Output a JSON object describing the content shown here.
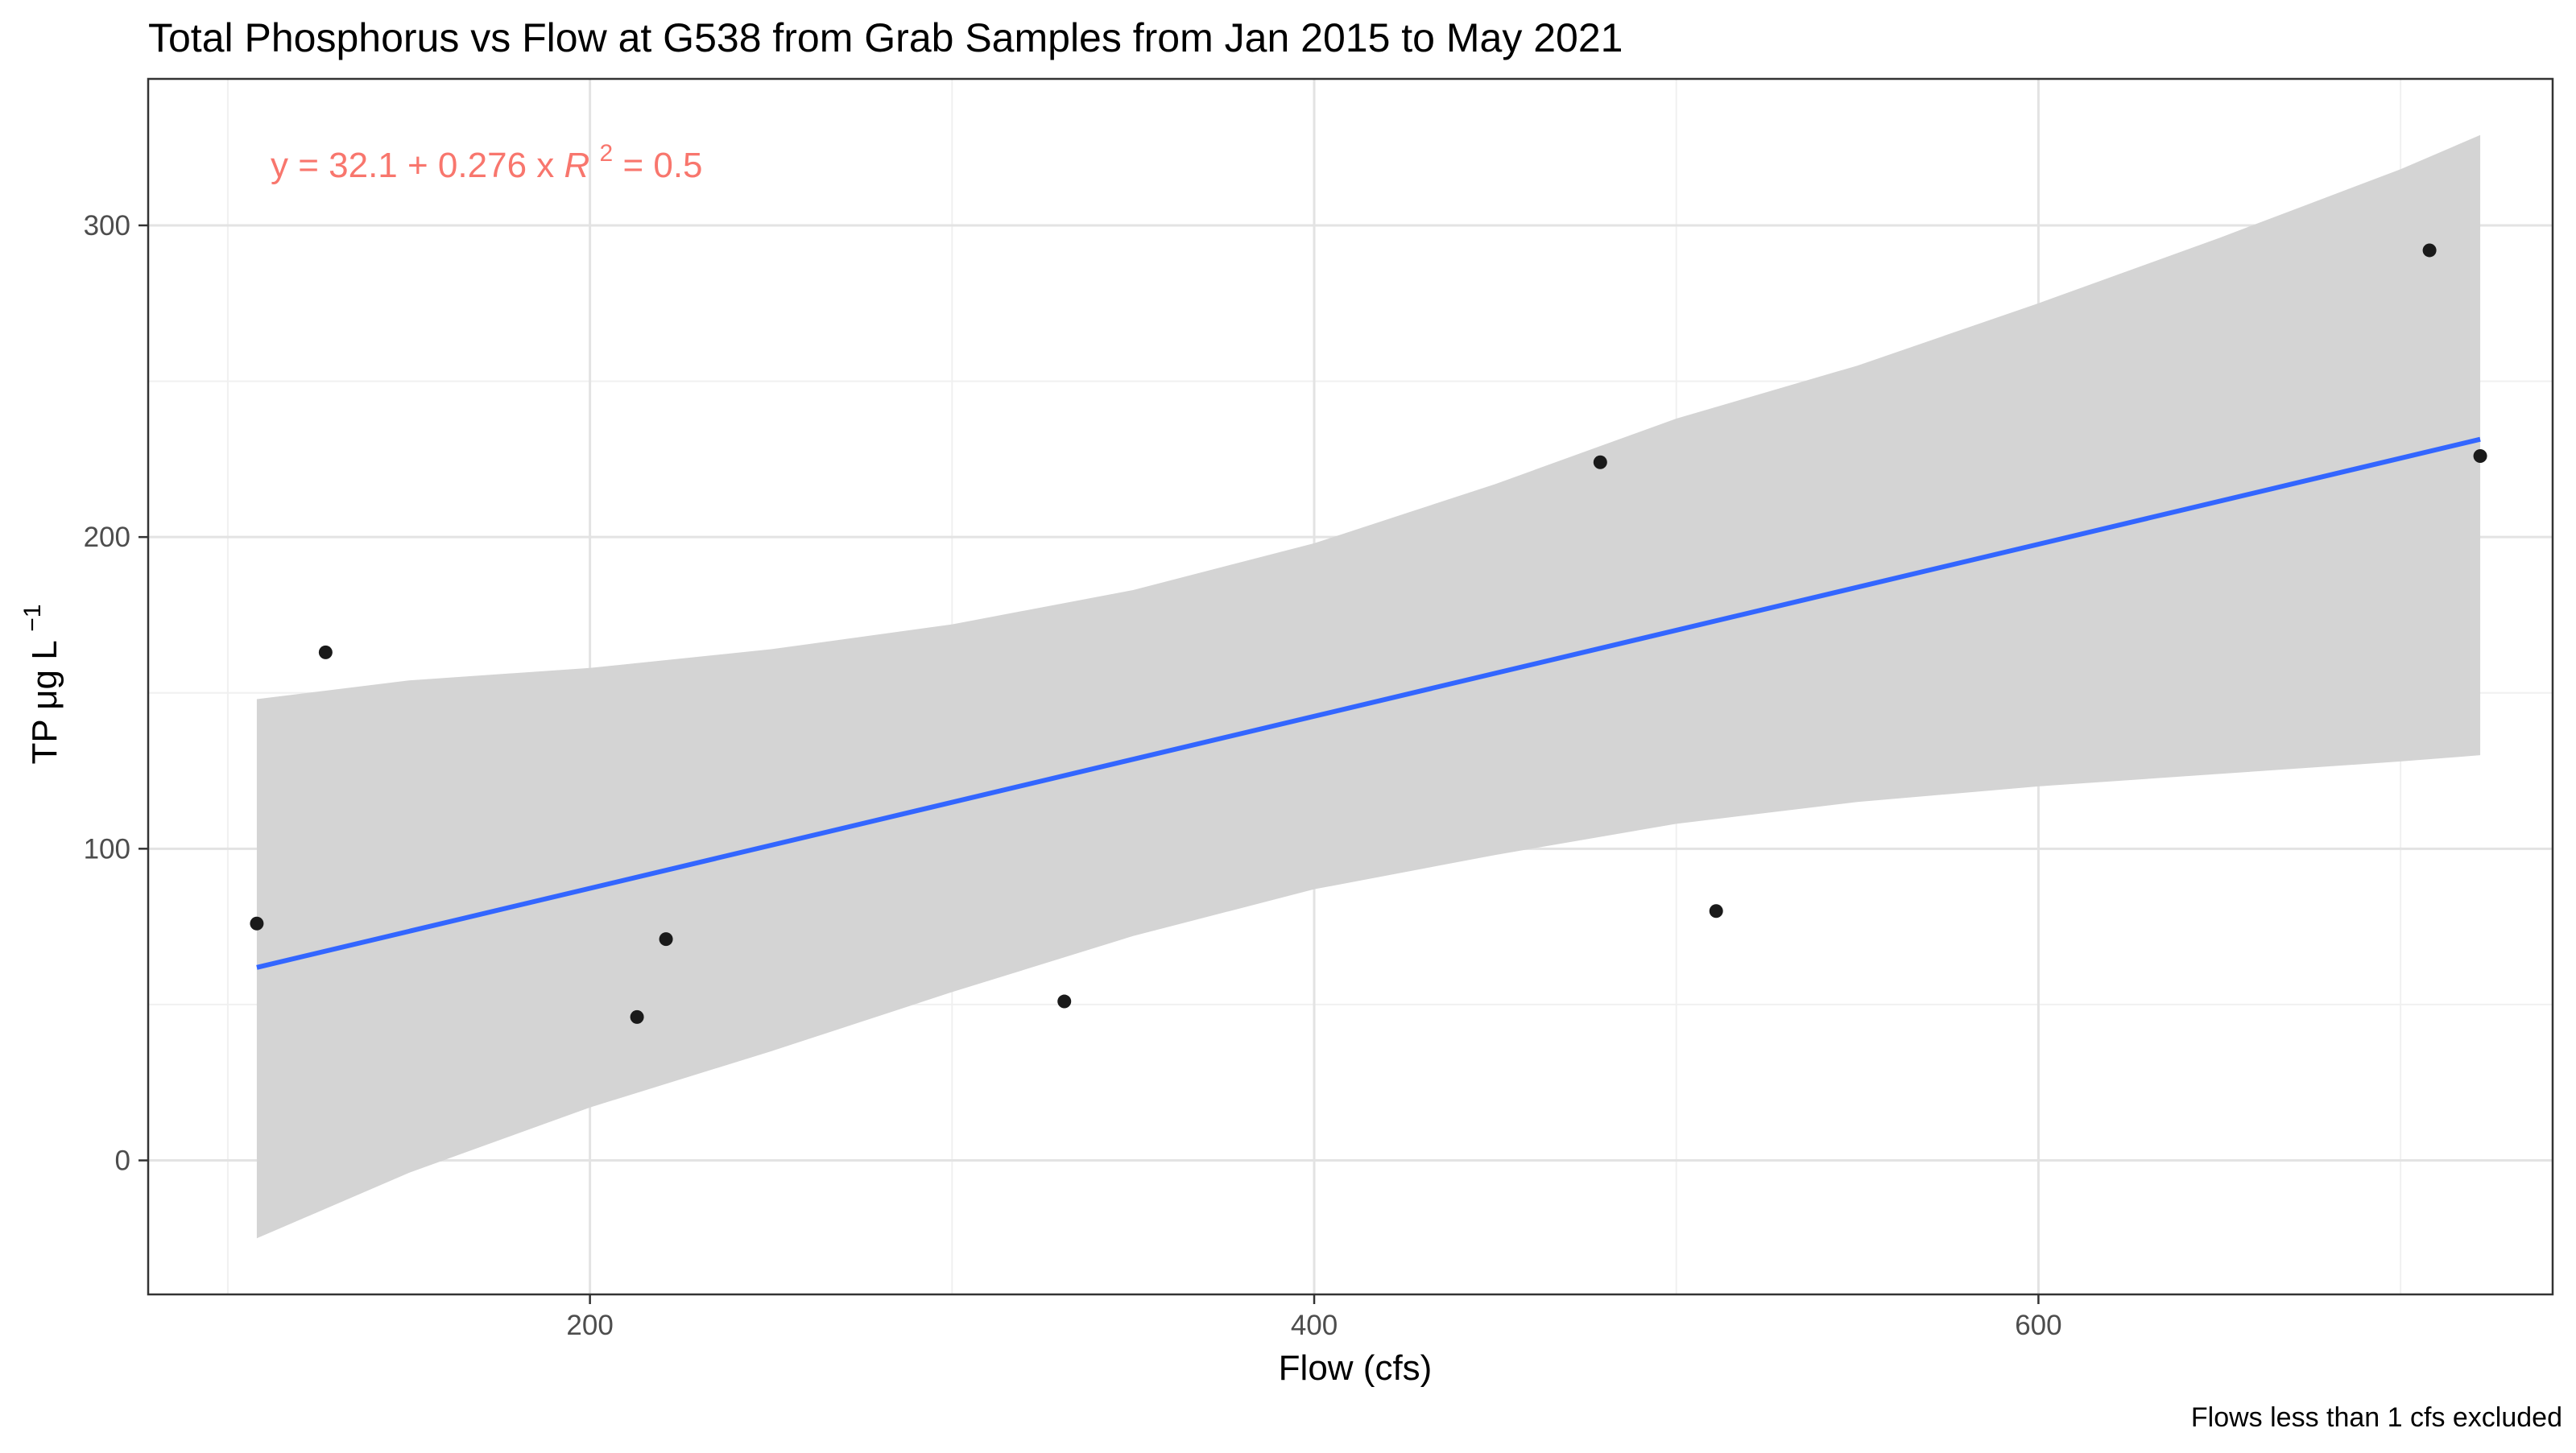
{
  "chart_data": {
    "type": "scatter",
    "title": "Total Phosphorus vs Flow at G538 from Grab Samples from Jan 2015 to May 2021",
    "xlabel": "Flow (cfs)",
    "ylabel": "TP μg L",
    "ylabel_superscript": "−1",
    "caption": "Flows less than 1 cfs excluded",
    "xlim": [
      78,
      742
    ],
    "ylim": [
      -43,
      347
    ],
    "x_ticks": [
      200,
      400,
      600
    ],
    "y_ticks": [
      0,
      100,
      200,
      300
    ],
    "grid": true,
    "points": [
      {
        "x": 108,
        "y": 76
      },
      {
        "x": 127,
        "y": 163
      },
      {
        "x": 213,
        "y": 46
      },
      {
        "x": 221,
        "y": 71
      },
      {
        "x": 331,
        "y": 51
      },
      {
        "x": 479,
        "y": 224
      },
      {
        "x": 511,
        "y": 80
      },
      {
        "x": 708,
        "y": 292
      },
      {
        "x": 722,
        "y": 226
      }
    ],
    "fit": {
      "intercept": 32.1,
      "slope": 0.276,
      "x_range": [
        108,
        722
      ],
      "color": "#3366ff"
    },
    "confidence_band": {
      "x": [
        108,
        150,
        200,
        250,
        300,
        350,
        400,
        450,
        500,
        550,
        600,
        650,
        700,
        722
      ],
      "upper": [
        148,
        154,
        158,
        164,
        172,
        183,
        198,
        217,
        238,
        255,
        275,
        296,
        318,
        329
      ],
      "lower": [
        -25,
        -4,
        17,
        35,
        54,
        72,
        87,
        98,
        108,
        115,
        120,
        124,
        128,
        130
      ],
      "color": "#d4d4d4"
    },
    "annotation": {
      "equation_prefix": "y = 32.1 + 0.276 x",
      "r_label": "R",
      "r_superscript": "2",
      "r_suffix": " = 0.5",
      "color": "#f8766d"
    },
    "point_color": "#1a1a1a"
  }
}
